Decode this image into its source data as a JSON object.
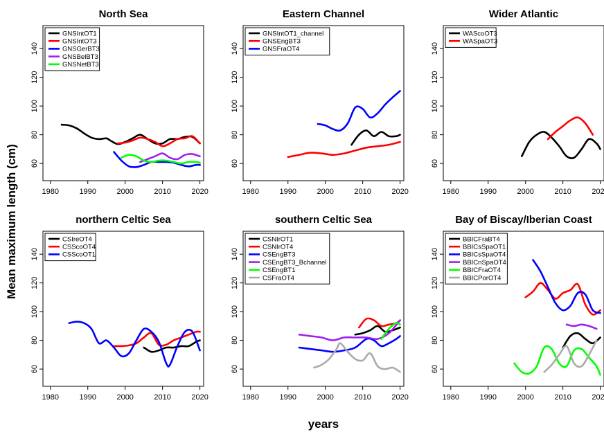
{
  "figure": {
    "ylabel": "Mean maximum length (cm)",
    "xlabel": "years"
  },
  "chart_data": [
    {
      "type": "line",
      "title": "North Sea",
      "xlim": [
        1978,
        2021
      ],
      "ylim": [
        48,
        156
      ],
      "xticks": [
        1980,
        1990,
        2000,
        2010,
        2020
      ],
      "yticks": [
        60,
        80,
        100,
        120,
        140
      ],
      "legend": "top-left",
      "series": [
        {
          "name": "GNSIntOT1",
          "color": "#000000",
          "x": [
            1983,
            1985,
            1987,
            1989,
            1991,
            1993,
            1995,
            1996,
            1998,
            2000,
            2002,
            2004,
            2006,
            2008,
            2010,
            2012,
            2014,
            2016,
            2018,
            2020
          ],
          "y": [
            87,
            86.5,
            84.5,
            81,
            78,
            77,
            77.5,
            76,
            73.5,
            75,
            77.5,
            80,
            77,
            74,
            74,
            77,
            77,
            78.5,
            78.5,
            74
          ]
        },
        {
          "name": "GNSIntOT3",
          "color": "#ff0000",
          "x": [
            1998,
            2000,
            2002,
            2004,
            2006,
            2008,
            2010,
            2012,
            2014,
            2016,
            2018,
            2020
          ],
          "y": [
            74,
            74.5,
            76,
            78,
            77,
            75,
            72,
            74,
            77,
            77.5,
            79,
            74
          ]
        },
        {
          "name": "GNSGerBT3",
          "color": "#0000ff",
          "x": [
            1997,
            1999,
            2001,
            2003,
            2005,
            2007,
            2009,
            2011,
            2013,
            2015,
            2017,
            2019,
            2020
          ],
          "y": [
            68,
            62,
            58,
            57.5,
            59,
            61,
            61,
            61,
            60.5,
            59,
            58,
            59,
            59
          ]
        },
        {
          "name": "GNSBelBT3",
          "color": "#a020f0",
          "x": [
            2004,
            2006,
            2008,
            2010,
            2012,
            2014,
            2016,
            2018,
            2020
          ],
          "y": [
            61,
            63,
            65,
            67,
            64,
            63,
            66,
            66.5,
            65
          ]
        },
        {
          "name": "GNSNetBT3",
          "color": "#00ff00",
          "x": [
            1999,
            2001,
            2003,
            2005,
            2007,
            2009,
            2011,
            2013,
            2015,
            2017,
            2019,
            2020
          ],
          "y": [
            64,
            66,
            65,
            62,
            61,
            62,
            62,
            61,
            60,
            61,
            61,
            60.5
          ]
        }
      ]
    },
    {
      "type": "line",
      "title": "Eastern Channel",
      "xlim": [
        1978,
        2021
      ],
      "ylim": [
        48,
        156
      ],
      "xticks": [
        1980,
        1990,
        2000,
        2010,
        2020
      ],
      "yticks": [
        60,
        80,
        100,
        120,
        140
      ],
      "legend": "top-left",
      "series": [
        {
          "name": "GNSIntOT1_channel",
          "color": "#000000",
          "x": [
            2007,
            2009,
            2011,
            2013,
            2015,
            2017,
            2019,
            2020
          ],
          "y": [
            73,
            80,
            83,
            79,
            82,
            79,
            79,
            80
          ]
        },
        {
          "name": "GNSEngBT3",
          "color": "#ff0000",
          "x": [
            1990,
            1993,
            1996,
            1999,
            2002,
            2005,
            2008,
            2011,
            2014,
            2017,
            2020
          ],
          "y": [
            64.5,
            66,
            67.5,
            67,
            66,
            67,
            69,
            71,
            72,
            73,
            75
          ]
        },
        {
          "name": "GNSFraOT4",
          "color": "#0000ff",
          "x": [
            1998,
            2000,
            2002,
            2004,
            2006,
            2008,
            2010,
            2012,
            2014,
            2016,
            2018,
            2020
          ],
          "y": [
            87.5,
            86.5,
            84,
            83,
            88,
            99,
            98,
            92,
            95,
            101,
            106,
            110.5
          ]
        }
      ]
    },
    {
      "type": "line",
      "title": "Wider Atlantic",
      "xlim": [
        1978,
        2021
      ],
      "ylim": [
        48,
        156
      ],
      "xticks": [
        1980,
        1990,
        2000,
        2010,
        2020
      ],
      "yticks": [
        60,
        80,
        100,
        120,
        140
      ],
      "legend": "top-left",
      "series": [
        {
          "name": "WAScoOT3",
          "color": "#000000",
          "x": [
            1999,
            2001,
            2003,
            2005,
            2007,
            2009,
            2011,
            2013,
            2015,
            2017,
            2019,
            2020
          ],
          "y": [
            65,
            75,
            80,
            82,
            78,
            72,
            65,
            64,
            70,
            77,
            74,
            70
          ]
        },
        {
          "name": "WASpaOT3",
          "color": "#ff0000",
          "x": [
            2006,
            2008,
            2010,
            2012,
            2014,
            2016,
            2018
          ],
          "y": [
            77,
            82,
            86,
            90,
            92,
            88,
            80
          ]
        }
      ]
    },
    {
      "type": "line",
      "title": "northern Celtic Sea",
      "xlim": [
        1978,
        2021
      ],
      "ylim": [
        48,
        156
      ],
      "xticks": [
        1980,
        1990,
        2000,
        2010,
        2020
      ],
      "yticks": [
        60,
        80,
        100,
        120,
        140
      ],
      "legend": "top-left",
      "series": [
        {
          "name": "CSIreOT4",
          "color": "#000000",
          "x": [
            2005,
            2007,
            2009,
            2011,
            2013,
            2015,
            2017,
            2019,
            2020
          ],
          "y": [
            75,
            72,
            73,
            75,
            75,
            76,
            76,
            79,
            80
          ]
        },
        {
          "name": "CSScoOT4",
          "color": "#ff0000",
          "x": [
            1997,
            1999,
            2001,
            2003,
            2005,
            2007,
            2009,
            2011,
            2013,
            2015,
            2017,
            2019,
            2020
          ],
          "y": [
            76,
            76,
            76.5,
            78,
            82,
            85,
            77,
            77,
            80,
            82,
            84,
            86,
            86
          ]
        },
        {
          "name": "CSScoOT1",
          "color": "#0000ff",
          "x": [
            1985,
            1987,
            1989,
            1991,
            1993,
            1995,
            1997,
            1999,
            2001,
            2003,
            2005,
            2007,
            2009,
            2011,
            2012,
            2014,
            2016,
            2018,
            2020
          ],
          "y": [
            92,
            93,
            92,
            88,
            78,
            80,
            75,
            69,
            71,
            80,
            88,
            86,
            79,
            64,
            63,
            76,
            86,
            86,
            73
          ]
        }
      ]
    },
    {
      "type": "line",
      "title": "southern Celtic Sea",
      "xlim": [
        1978,
        2021
      ],
      "ylim": [
        48,
        156
      ],
      "xticks": [
        1980,
        1990,
        2000,
        2010,
        2020
      ],
      "yticks": [
        60,
        80,
        100,
        120,
        140
      ],
      "legend": "top-left",
      "series": [
        {
          "name": "CSNIrOT1",
          "color": "#000000",
          "x": [
            2008,
            2010,
            2012,
            2014,
            2016,
            2018,
            2020
          ],
          "y": [
            84,
            85,
            87,
            90,
            86,
            87,
            89
          ]
        },
        {
          "name": "CSNIrOT4",
          "color": "#ff0000",
          "x": [
            2009,
            2011,
            2013,
            2015,
            2017,
            2019,
            2020
          ],
          "y": [
            89,
            95,
            94,
            90,
            91,
            92,
            94
          ]
        },
        {
          "name": "CSEngBT3",
          "color": "#0000ff",
          "x": [
            1993,
            1996,
            1999,
            2002,
            2005,
            2008,
            2011,
            2013,
            2015,
            2017,
            2019,
            2020
          ],
          "y": [
            75,
            74,
            73,
            72,
            73,
            75,
            81,
            80,
            76,
            78,
            81,
            83
          ]
        },
        {
          "name": "CSEngBT3_Bchannel",
          "color": "#a020f0",
          "x": [
            1993,
            1996,
            1999,
            2002,
            2005,
            2008,
            2011,
            2014,
            2017,
            2020
          ],
          "y": [
            84,
            83,
            82,
            80,
            82,
            82,
            82,
            81,
            85,
            94
          ]
        },
        {
          "name": "CSEngBT1",
          "color": "#00ff00",
          "x": [
            2015,
            2017,
            2019,
            2020
          ],
          "y": [
            81,
            88,
            92,
            91
          ]
        },
        {
          "name": "CSFraOT4",
          "color": "#aaaaaa",
          "x": [
            1997,
            1999,
            2001,
            2003,
            2004,
            2006,
            2008,
            2010,
            2012,
            2014,
            2016,
            2018,
            2020
          ],
          "y": [
            61,
            63,
            67,
            74,
            78,
            72,
            67,
            66,
            71,
            62,
            60,
            61,
            58
          ]
        }
      ]
    },
    {
      "type": "line",
      "title": "Bay of Biscay/Iberian Coast",
      "xlim": [
        1978,
        2021
      ],
      "ylim": [
        48,
        156
      ],
      "xticks": [
        1980,
        1990,
        2000,
        2010,
        2020
      ],
      "yticks": [
        60,
        80,
        100,
        120,
        140
      ],
      "legend": "top-left",
      "series": [
        {
          "name": "BBICFraBT4",
          "color": "#000000",
          "x": [
            2010,
            2012,
            2014,
            2016,
            2018,
            2020
          ],
          "y": [
            75,
            83,
            85,
            81,
            78,
            82
          ]
        },
        {
          "name": "BBICsSpaOT1",
          "color": "#ff0000",
          "x": [
            2000,
            2002,
            2004,
            2006,
            2008,
            2010,
            2012,
            2014,
            2016,
            2018,
            2020
          ],
          "y": [
            110,
            114,
            120,
            115,
            109,
            113,
            115,
            119,
            105,
            98,
            101
          ]
        },
        {
          "name": "BBICsSpaOT4",
          "color": "#0000ff",
          "x": [
            2002,
            2004,
            2006,
            2008,
            2010,
            2012,
            2014,
            2016,
            2018,
            2020
          ],
          "y": [
            136,
            128,
            117,
            106,
            101,
            104,
            113,
            112,
            101,
            99
          ]
        },
        {
          "name": "BBICnSpaOT4",
          "color": "#a020f0",
          "x": [
            2011,
            2013,
            2015,
            2017,
            2019
          ],
          "y": [
            91,
            90,
            91,
            90,
            88
          ]
        },
        {
          "name": "BBICFraOT4",
          "color": "#00ff00",
          "x": [
            1997,
            1999,
            2001,
            2003,
            2005,
            2007,
            2009,
            2011,
            2013,
            2015,
            2017,
            2019,
            2020
          ],
          "y": [
            64,
            58,
            57,
            62,
            75,
            74,
            64,
            62,
            73,
            74,
            68,
            62,
            56
          ]
        },
        {
          "name": "BBICPorOT4",
          "color": "#aaaaaa",
          "x": [
            2005,
            2007,
            2009,
            2011,
            2013,
            2015,
            2017,
            2019
          ],
          "y": [
            58,
            63,
            70,
            76,
            64,
            62,
            70,
            80
          ]
        }
      ]
    }
  ]
}
